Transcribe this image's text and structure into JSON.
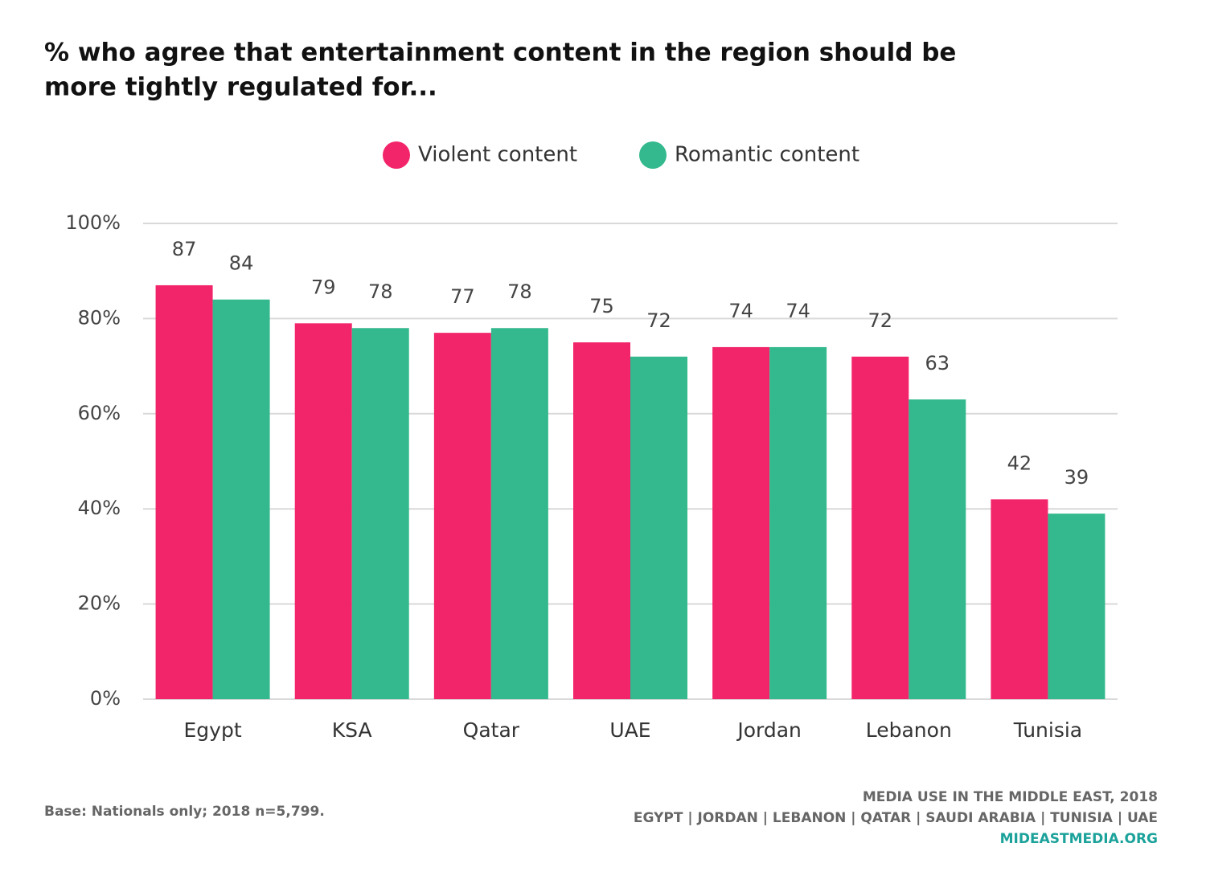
{
  "chart_data": {
    "type": "grouped_bar",
    "title": [
      "% who agree that entertainment content in the region should be",
      "more tightly regulated for..."
    ],
    "categories": [
      "Egypt",
      "KSA",
      "Qatar",
      "UAE",
      "Jordan",
      "Lebanon",
      "Tunisia"
    ],
    "series": [
      {
        "name": "Violent content",
        "color": "#f2246a",
        "values": [
          87,
          79,
          77,
          75,
          74,
          72,
          42
        ]
      },
      {
        "name": "Romantic content",
        "color": "#33b98d",
        "values": [
          84,
          78,
          78,
          72,
          74,
          63,
          39
        ]
      }
    ],
    "ylim": [
      0,
      100
    ],
    "yticks": [
      {
        "value": 0,
        "label": "0%"
      },
      {
        "value": 20,
        "label": "20%"
      },
      {
        "value": 40,
        "label": "40%"
      },
      {
        "value": 60,
        "label": "60%"
      },
      {
        "value": 80,
        "label": "80%"
      },
      {
        "value": 100,
        "label": "100%"
      }
    ],
    "grid": true,
    "legend": "top",
    "footnote": "Base: Nationals only; 2018 n=5,799.",
    "source": [
      "MEDIA USE IN THE MIDDLE EAST, 2018",
      "EGYPT | JORDAN | LEBANON | QATAR | SAUDI ARABIA | TUNISIA | UAE",
      "MIDEASTMEDIA.ORG"
    ]
  }
}
